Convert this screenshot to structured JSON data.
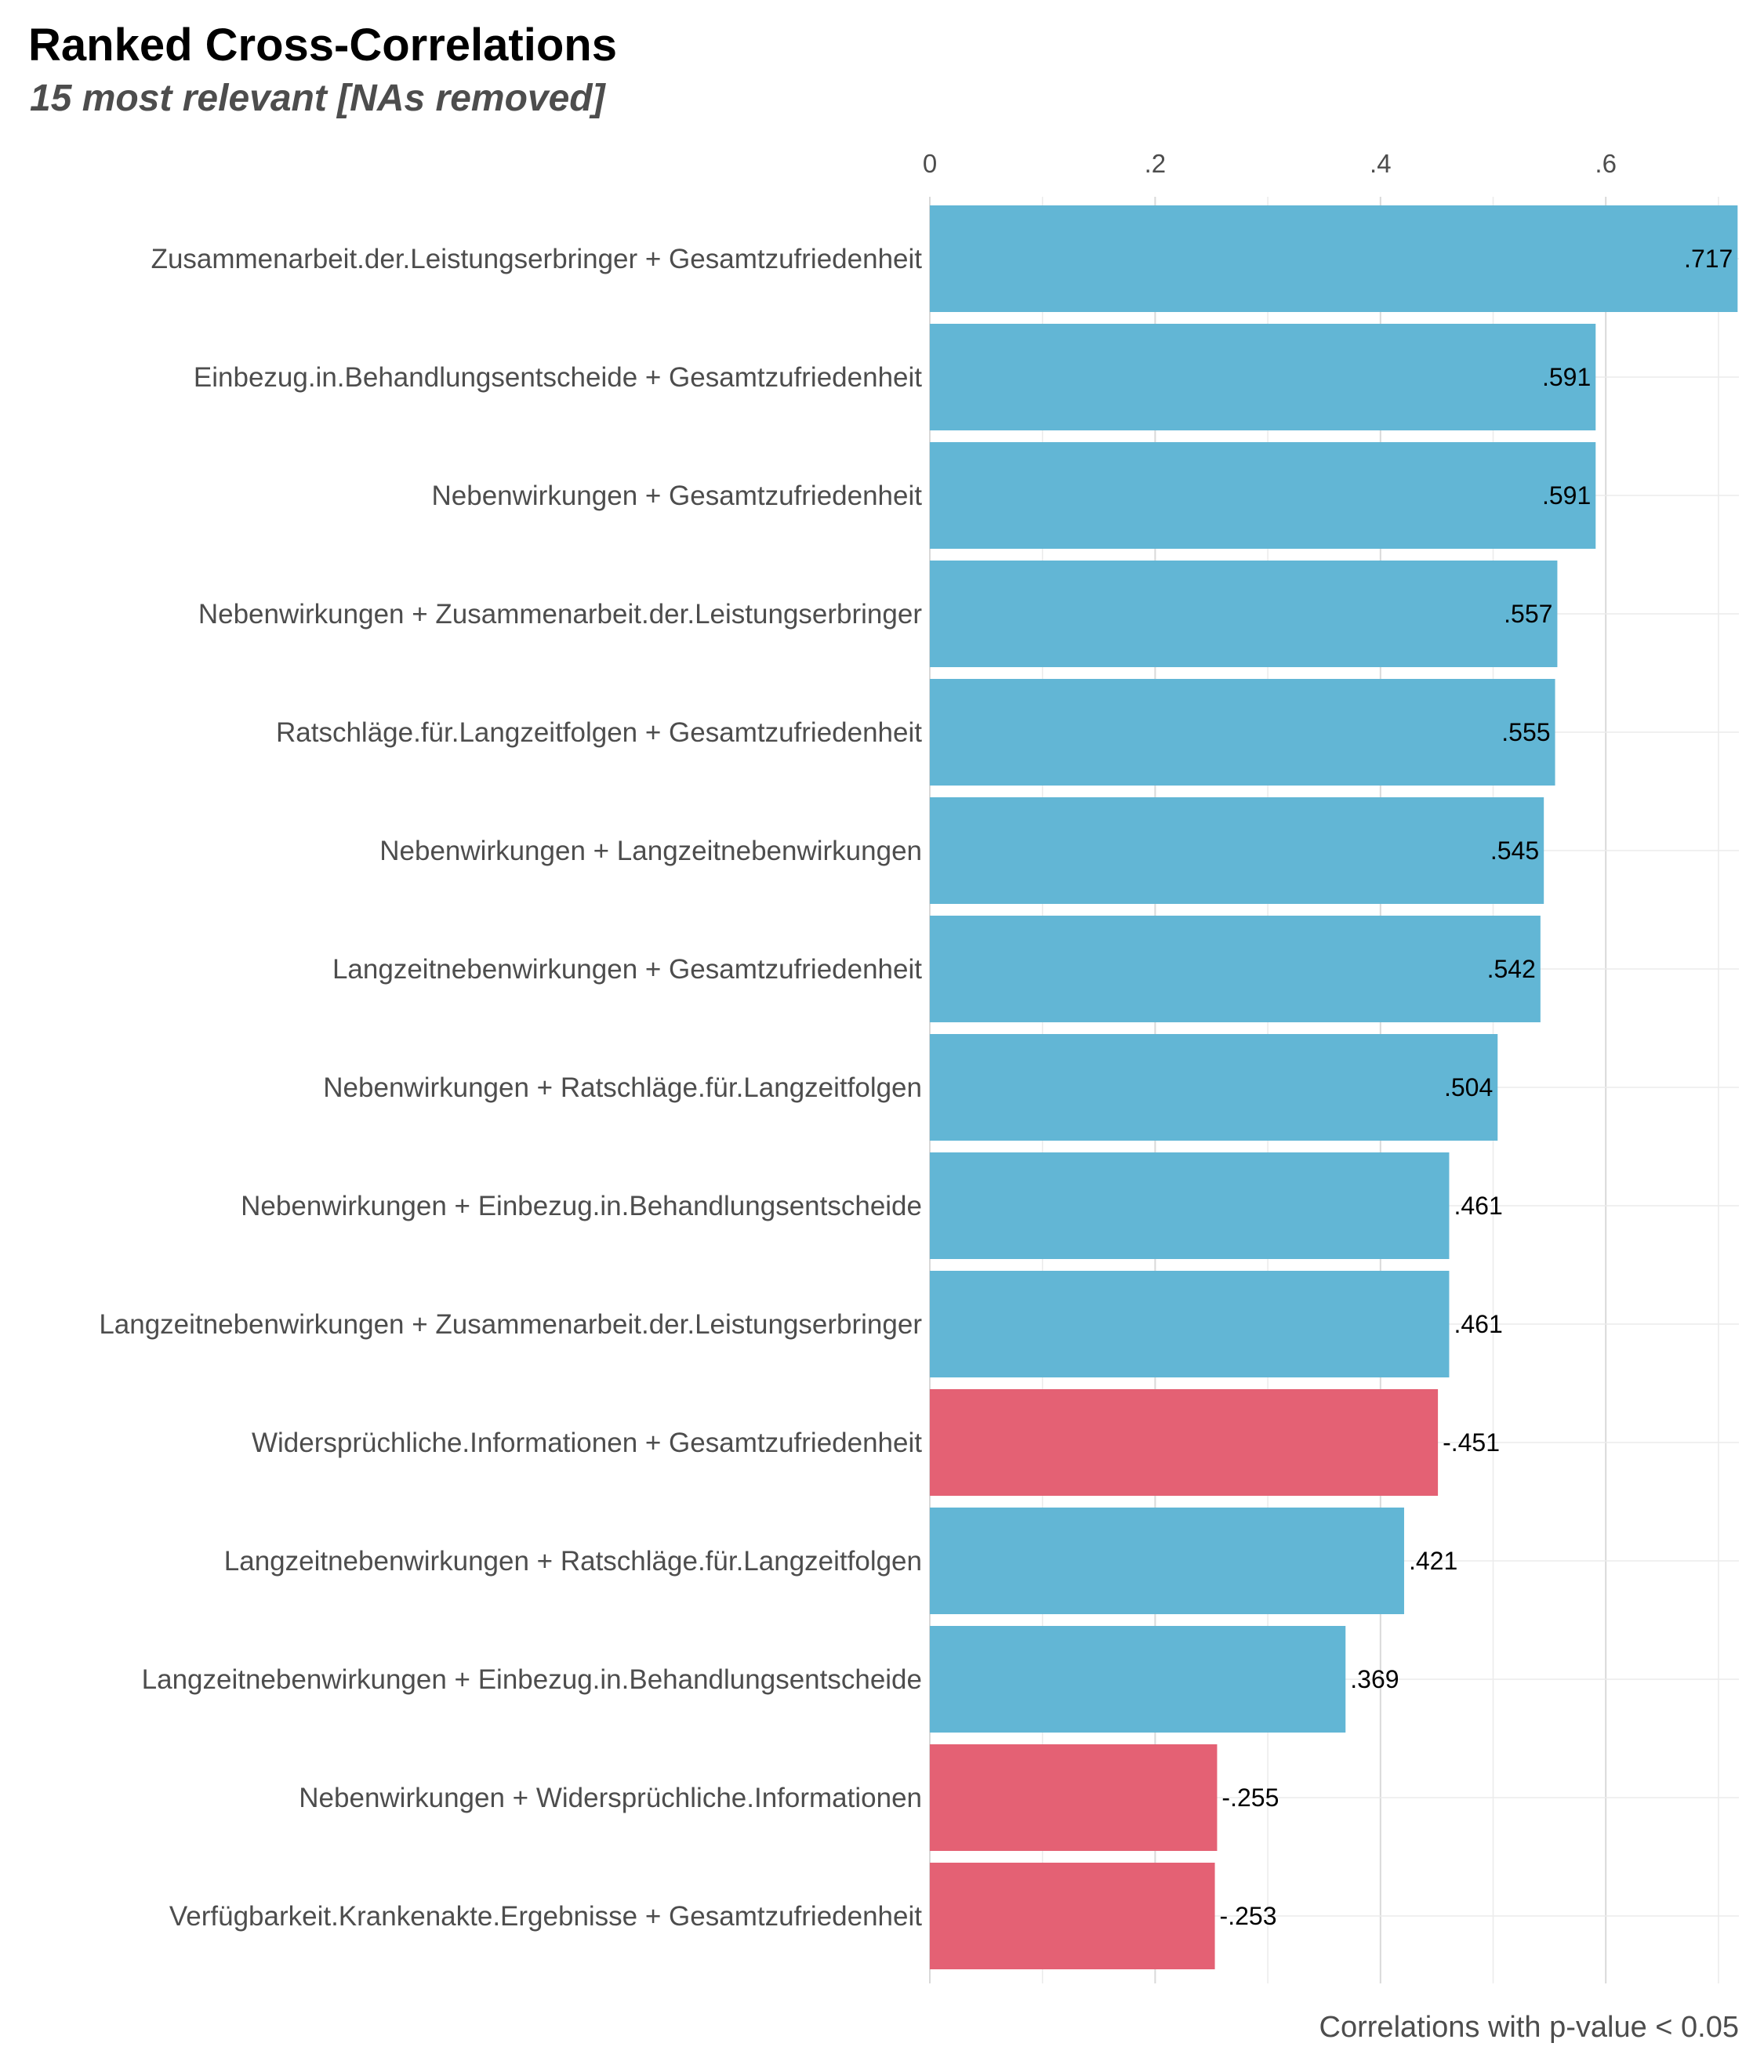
{
  "chart_data": {
    "type": "bar",
    "orientation": "horizontal",
    "title": "Ranked Cross-Correlations",
    "subtitle": "15 most relevant [NAs removed]",
    "caption": "Correlations with p-value < 0.05",
    "xlim": [
      0,
      0.72
    ],
    "x_ticks": [
      0,
      0.2,
      0.4,
      0.6
    ],
    "x_tick_labels": [
      "0",
      ".2",
      ".4",
      ".6"
    ],
    "x_axis_position": "top",
    "grid": true,
    "legend": "none",
    "colors": {
      "positive": "#62b6d5",
      "negative": "#e46174"
    },
    "categories": [
      "Zusammenarbeit.der.Leistungserbringer + Gesamtzufriedenheit",
      "Einbezug.in.Behandlungsentscheide + Gesamtzufriedenheit",
      "Nebenwirkungen + Gesamtzufriedenheit",
      "Nebenwirkungen + Zusammenarbeit.der.Leistungserbringer",
      "Ratschläge.für.Langzeitfolgen + Gesamtzufriedenheit",
      "Nebenwirkungen + Langzeitnebenwirkungen",
      "Langzeitnebenwirkungen + Gesamtzufriedenheit",
      "Nebenwirkungen + Ratschläge.für.Langzeitfolgen",
      "Nebenwirkungen + Einbezug.in.Behandlungsentscheide",
      "Langzeitnebenwirkungen + Zusammenarbeit.der.Leistungserbringer",
      "Widersprüchliche.Informationen + Gesamtzufriedenheit",
      "Langzeitnebenwirkungen + Ratschläge.für.Langzeitfolgen",
      "Langzeitnebenwirkungen + Einbezug.in.Behandlungsentscheide",
      "Nebenwirkungen + Widersprüchliche.Informationen",
      "Verfügbarkeit.Krankenakte.Ergebnisse + Gesamtzufriedenheit"
    ],
    "values": [
      0.717,
      0.591,
      0.591,
      0.557,
      0.555,
      0.545,
      0.542,
      0.504,
      0.461,
      0.461,
      -0.451,
      0.421,
      0.369,
      -0.255,
      -0.253
    ],
    "value_labels": [
      ".717",
      ".591",
      ".591",
      ".557",
      ".555",
      ".545",
      ".542",
      ".504",
      ".461",
      ".461",
      "-.451",
      ".421",
      ".369",
      "-.255",
      "-.253"
    ]
  }
}
